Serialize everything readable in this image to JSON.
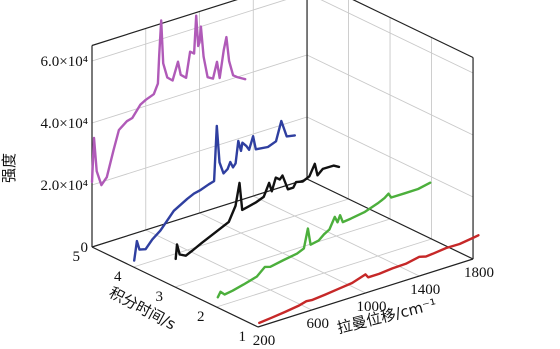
{
  "chart_data": {
    "type": "line",
    "title": "",
    "axis_x": {
      "label": "拉曼位移/cm⁻¹",
      "ticks": [
        200,
        600,
        1000,
        1400,
        1800
      ],
      "range": [
        200,
        1800
      ]
    },
    "axis_depth": {
      "label": "积分时间/s",
      "ticks": [
        1,
        2,
        3,
        4,
        5
      ],
      "range": [
        1,
        5
      ]
    },
    "axis_z": {
      "label": "强度",
      "ticks": [
        "0",
        "2.0×10⁴",
        "4.0×10⁴",
        "6.0×10⁴"
      ],
      "tick_values": [
        0,
        20000,
        40000,
        60000
      ],
      "range": [
        0,
        65000
      ]
    },
    "grid": true,
    "series": [
      {
        "depth": 1,
        "color": "#c62828",
        "points": [
          [
            210,
            1200
          ],
          [
            300,
            1600
          ],
          [
            400,
            2100
          ],
          [
            500,
            2700
          ],
          [
            560,
            3400
          ],
          [
            600,
            3200
          ],
          [
            700,
            3600
          ],
          [
            800,
            4100
          ],
          [
            900,
            4600
          ],
          [
            1000,
            6000
          ],
          [
            1020,
            4800
          ],
          [
            1100,
            4800
          ],
          [
            1200,
            5200
          ],
          [
            1300,
            5300
          ],
          [
            1400,
            6200
          ],
          [
            1450,
            5600
          ],
          [
            1500,
            5800
          ],
          [
            1600,
            6300
          ],
          [
            1700,
            6200
          ],
          [
            1800,
            6800
          ],
          [
            1840,
            7100
          ]
        ]
      },
      {
        "depth": 2,
        "color": "#4caf3c",
        "points": [
          [
            210,
            3000
          ],
          [
            230,
            4500
          ],
          [
            260,
            3200
          ],
          [
            320,
            3600
          ],
          [
            400,
            4500
          ],
          [
            500,
            5700
          ],
          [
            560,
            8000
          ],
          [
            600,
            7500
          ],
          [
            700,
            8300
          ],
          [
            800,
            9000
          ],
          [
            850,
            10000
          ],
          [
            880,
            16000
          ],
          [
            900,
            10500
          ],
          [
            960,
            11000
          ],
          [
            1000,
            12500
          ],
          [
            1040,
            13500
          ],
          [
            1080,
            17000
          ],
          [
            1100,
            15000
          ],
          [
            1120,
            17000
          ],
          [
            1140,
            14500
          ],
          [
            1200,
            14800
          ],
          [
            1300,
            15500
          ],
          [
            1400,
            17000
          ],
          [
            1450,
            18000
          ],
          [
            1480,
            19000
          ],
          [
            1500,
            17500
          ],
          [
            1600,
            17500
          ],
          [
            1700,
            17500
          ],
          [
            1790,
            18300
          ]
        ]
      },
      {
        "depth": 3,
        "color": "#111111",
        "points": [
          [
            205,
            9000
          ],
          [
            215,
            13500
          ],
          [
            235,
            10000
          ],
          [
            280,
            9000
          ],
          [
            330,
            10000
          ],
          [
            400,
            11500
          ],
          [
            500,
            13500
          ],
          [
            600,
            15500
          ],
          [
            650,
            20000
          ],
          [
            680,
            27000
          ],
          [
            700,
            18000
          ],
          [
            750,
            18500
          ],
          [
            800,
            19000
          ],
          [
            860,
            20000
          ],
          [
            900,
            24000
          ],
          [
            920,
            21000
          ],
          [
            950,
            25000
          ],
          [
            980,
            24000
          ],
          [
            1000,
            25000
          ],
          [
            1040,
            20000
          ],
          [
            1080,
            20000
          ],
          [
            1100,
            21500
          ],
          [
            1150,
            21000
          ],
          [
            1200,
            22000
          ],
          [
            1240,
            25500
          ],
          [
            1260,
            21500
          ],
          [
            1300,
            23000
          ],
          [
            1380,
            23000
          ],
          [
            1420,
            22000
          ]
        ]
      },
      {
        "depth": 4,
        "color": "#2f3fa0",
        "points": [
          [
            205,
            2000
          ],
          [
            225,
            8000
          ],
          [
            245,
            5000
          ],
          [
            290,
            4500
          ],
          [
            340,
            7000
          ],
          [
            400,
            9000
          ],
          [
            500,
            14000
          ],
          [
            600,
            16500
          ],
          [
            650,
            17500
          ],
          [
            700,
            18000
          ],
          [
            760,
            19000
          ],
          [
            800,
            19500
          ],
          [
            820,
            37000
          ],
          [
            840,
            25000
          ],
          [
            870,
            21000
          ],
          [
            900,
            22000
          ],
          [
            920,
            24000
          ],
          [
            940,
            22000
          ],
          [
            960,
            23000
          ],
          [
            980,
            30000
          ],
          [
            1000,
            26500
          ],
          [
            1010,
            29000
          ],
          [
            1040,
            27500
          ],
          [
            1060,
            26000
          ],
          [
            1090,
            30000
          ],
          [
            1110,
            25500
          ],
          [
            1200,
            25000
          ],
          [
            1260,
            26000
          ],
          [
            1300,
            32000
          ],
          [
            1340,
            26500
          ],
          [
            1400,
            26000
          ]
        ]
      },
      {
        "depth": 5,
        "color": "#b05ab8",
        "points": [
          [
            200,
            21000
          ],
          [
            215,
            35000
          ],
          [
            235,
            24000
          ],
          [
            270,
            19000
          ],
          [
            310,
            21000
          ],
          [
            360,
            29000
          ],
          [
            400,
            35000
          ],
          [
            460,
            37000
          ],
          [
            500,
            37500
          ],
          [
            560,
            41000
          ],
          [
            600,
            42000
          ],
          [
            660,
            43000
          ],
          [
            690,
            46000
          ],
          [
            700,
            55000
          ],
          [
            715,
            66000
          ],
          [
            730,
            52000
          ],
          [
            760,
            47000
          ],
          [
            800,
            45500
          ],
          [
            840,
            51000
          ],
          [
            860,
            46500
          ],
          [
            900,
            45000
          ],
          [
            930,
            53000
          ],
          [
            960,
            52000
          ],
          [
            975,
            64000
          ],
          [
            990,
            54000
          ],
          [
            1000,
            55000
          ],
          [
            1010,
            60000
          ],
          [
            1030,
            50000
          ],
          [
            1060,
            43000
          ],
          [
            1100,
            42000
          ],
          [
            1130,
            47000
          ],
          [
            1150,
            41500
          ],
          [
            1180,
            50000
          ],
          [
            1200,
            54000
          ],
          [
            1220,
            46000
          ],
          [
            1250,
            41000
          ],
          [
            1280,
            40000
          ],
          [
            1320,
            39000
          ],
          [
            1340,
            38500
          ]
        ]
      }
    ]
  }
}
